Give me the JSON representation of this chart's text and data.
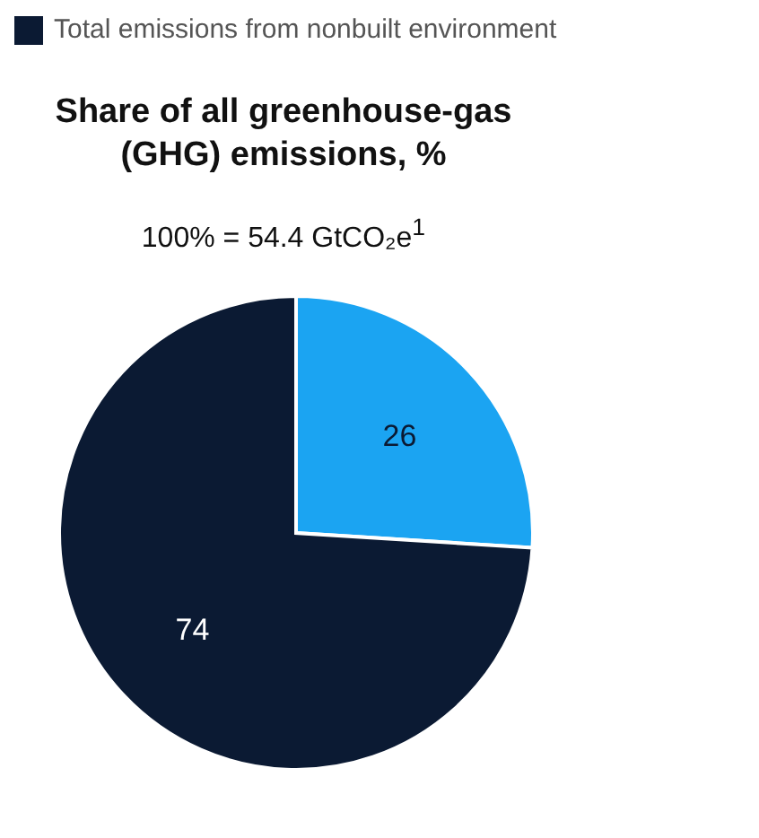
{
  "chart_data": {
    "type": "pie",
    "title": "Share of all greenhouse-gas (GHG) emissions, %",
    "subtitle": "100% = 54.4 GtCO₂e$^{1}$",
    "categories": [
      null,
      "Total emissions from nonbuilt environment"
    ],
    "values": [
      26,
      74
    ],
    "colors": [
      "#1ba4f2",
      "#0b1a33"
    ],
    "data_labels": true,
    "legend": "top left"
  }
}
